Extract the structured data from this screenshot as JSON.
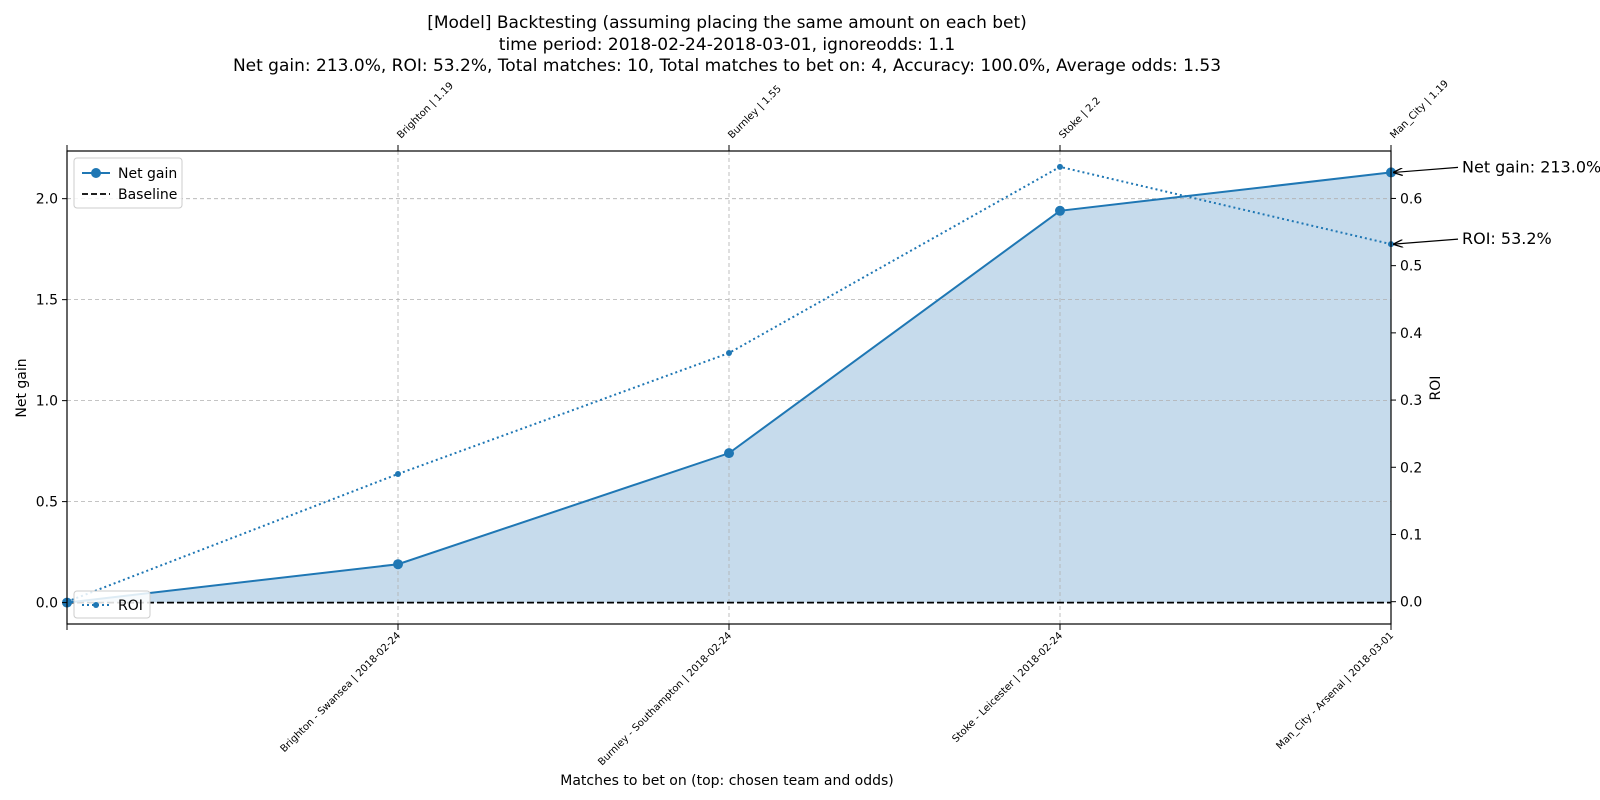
{
  "chart_data": {
    "type": "line",
    "title_lines": [
      "[Model] Backtesting  (assuming placing the same amount on each bet)",
      "time period: 2018-02-24-2018-03-01, ignoreodds: 1.1",
      "Net gain: 213.0%, ROI: 53.2%, Total matches: 10, Total matches to bet on: 4, Accuracy: 100.0%, Average odds: 1.53"
    ],
    "xlabel": "Matches to bet on (top: chosen team and odds)",
    "ylabel_left": "Net gain",
    "ylabel_right": "ROI",
    "x": [
      0,
      1,
      2,
      3,
      4
    ],
    "x_tick_labels_bottom": [
      "",
      "Brighton - Swansea | 2018-02-24",
      "Burnley - Southampton | 2018-02-24",
      "Stoke - Leicester | 2018-02-24",
      "Man_City - Arsenal | 2018-03-01"
    ],
    "x_tick_labels_top": [
      "",
      "Brighton | 1.19",
      "Burnley | 1.55",
      "Stoke | 2.2",
      "Man_City | 1.19"
    ],
    "ylim_left": [
      -0.106,
      2.236
    ],
    "ylim_right": [
      -0.0332,
      0.6706
    ],
    "yticks_left": [
      0.0,
      0.5,
      1.0,
      1.5,
      2.0
    ],
    "ytick_labels_left": [
      "0.0",
      "0.5",
      "1.0",
      "1.5",
      "2.0"
    ],
    "yticks_right": [
      0.0,
      0.1,
      0.2,
      0.3,
      0.4,
      0.5,
      0.6
    ],
    "ytick_labels_right": [
      "0.0",
      "0.1",
      "0.2",
      "0.3",
      "0.4",
      "0.5",
      "0.6"
    ],
    "grid": true,
    "series": [
      {
        "name": "Net gain",
        "axis": "left",
        "style": "solid-marker-filled",
        "values": [
          0.0,
          0.19,
          0.74,
          1.94,
          2.13
        ]
      },
      {
        "name": "Baseline",
        "axis": "left",
        "style": "dashed",
        "values": [
          0,
          0,
          0,
          0,
          0
        ]
      },
      {
        "name": "ROI",
        "axis": "right",
        "style": "dotted-marker",
        "values": [
          0.0,
          0.19,
          0.37,
          0.647,
          0.532
        ]
      }
    ],
    "annotations": [
      {
        "text": "Net gain: 213.0%",
        "series": "Net gain",
        "x": 4
      },
      {
        "text": "ROI: 53.2%",
        "series": "ROI",
        "x": 4
      }
    ],
    "legend_left": {
      "placement": "upper-left",
      "entries": [
        "Net gain",
        "Baseline"
      ]
    },
    "legend_right": {
      "placement": "lower-left",
      "entries": [
        "ROI"
      ]
    },
    "colors": {
      "line": "#1f77b4",
      "fill": "#c6dbec",
      "grid": "#b0b0b0",
      "baseline": "#000000"
    }
  }
}
